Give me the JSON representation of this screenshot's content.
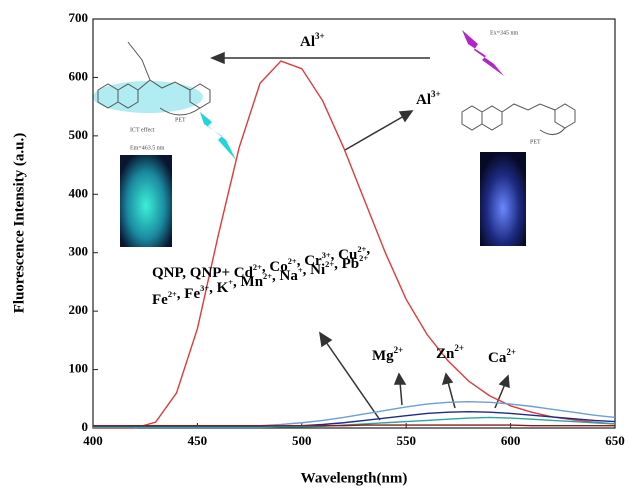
{
  "chart_data": {
    "type": "line",
    "xlabel": "Wavelength(nm)",
    "ylabel": "Fluorescence Intensity (a.u.)",
    "xlim": [
      400,
      650
    ],
    "xticks": [
      400,
      450,
      500,
      550,
      600,
      650
    ],
    "ylim": [
      0,
      700
    ],
    "yticks": [
      0,
      100,
      200,
      300,
      400,
      500,
      600,
      700
    ],
    "x": [
      400,
      410,
      420,
      430,
      440,
      450,
      460,
      470,
      480,
      490,
      500,
      510,
      520,
      530,
      540,
      550,
      560,
      570,
      580,
      590,
      600,
      610,
      620,
      630,
      640,
      650
    ],
    "series": [
      {
        "name": "Al3+",
        "color": "#e03a3a",
        "values": [
          0,
          0,
          0,
          10,
          60,
          170,
          330,
          480,
          590,
          628,
          615,
          560,
          480,
          390,
          300,
          220,
          160,
          115,
          80,
          55,
          38,
          27,
          19,
          14,
          10,
          7
        ]
      },
      {
        "name": "Mg2+",
        "color": "#6a9fd8",
        "values": [
          3,
          3,
          3,
          3,
          3,
          3,
          3,
          3,
          4,
          6,
          9,
          13,
          18,
          24,
          30,
          36,
          41,
          44,
          45,
          44,
          41,
          37,
          32,
          27,
          22,
          18
        ]
      },
      {
        "name": "Zn2+",
        "color": "#1f2a8a",
        "values": [
          2,
          2,
          2,
          2,
          2,
          2,
          2,
          2,
          2,
          3,
          4,
          6,
          9,
          13,
          17,
          21,
          25,
          27,
          28,
          27,
          25,
          22,
          19,
          16,
          13,
          11
        ]
      },
      {
        "name": "Ca2+",
        "color": "#2aa6a0",
        "values": [
          1,
          1,
          1,
          1,
          1,
          1,
          1,
          1,
          1,
          2,
          2,
          3,
          5,
          7,
          9,
          11,
          13,
          15,
          17,
          18,
          17,
          15,
          13,
          11,
          9,
          7
        ]
      },
      {
        "name": "QNP",
        "color": "#8b1a1a",
        "values": [
          4,
          4,
          4,
          4,
          4,
          4,
          4,
          4,
          4,
          4,
          4,
          4,
          4,
          5,
          5,
          5,
          5,
          5,
          5,
          5,
          5,
          4,
          4,
          4,
          4,
          4
        ]
      }
    ],
    "annotations": [
      [
        {
          "t": "Al",
          "s": "3+"
        }
      ],
      [
        {
          "t": "Al",
          "s": "3+"
        }
      ],
      [
        {
          "t": "QNP, QNP+ Cd",
          "s": "2+"
        },
        {
          "t": ", Co",
          "s": "2+"
        },
        {
          "t": ", Cr",
          "s": "3+"
        },
        {
          "t": ", Cu",
          "s": "2+"
        },
        {
          "t": ","
        }
      ],
      [
        {
          "t": "Fe",
          "s": "2+"
        },
        {
          "t": ", Fe",
          "s": "3+"
        },
        {
          "t": ", K",
          "s": "+"
        },
        {
          "t": ",  Mn",
          "s": "2+"
        },
        {
          "t": ", Na",
          "s": "+"
        },
        {
          "t": ", Ni",
          "s": "2+"
        },
        {
          "t": ", Pb",
          "s": "2+"
        }
      ],
      [
        {
          "t": "Mg",
          "s": "2+"
        }
      ],
      [
        {
          "t": "Zn",
          "s": "2+"
        }
      ],
      [
        {
          "t": "Ca",
          "s": "2+"
        }
      ]
    ],
    "inset_labels": [
      "ICT effect",
      "PET",
      "Em=463.5 nm",
      "Ex=345 nm",
      "PET"
    ]
  }
}
